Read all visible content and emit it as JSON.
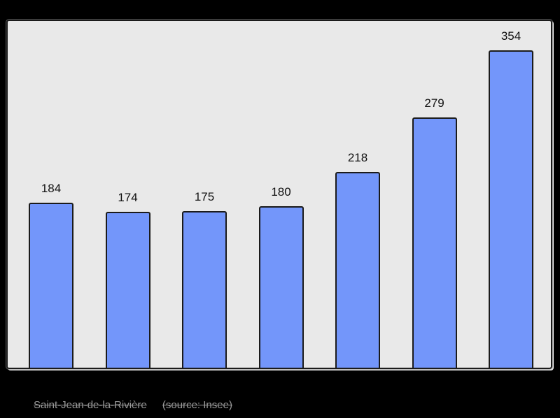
{
  "page": {
    "background": "#000000"
  },
  "chart_data": {
    "type": "bar",
    "values": [
      184,
      174,
      175,
      180,
      218,
      279,
      354
    ],
    "categories": [
      "",
      "",
      "",
      "",
      "",
      "",
      ""
    ],
    "title": "",
    "xlabel": "",
    "ylabel": "",
    "ylim": [
      0,
      354
    ],
    "grid": false,
    "legend_position": "none",
    "data_labels_shown": true,
    "bar_color": "#7396fa",
    "bar_border_color": "#1b1b1b",
    "plot_background": "#e9e9e9",
    "value_label_color": "#111111"
  },
  "caption": {
    "commune": "Saint-Jean-de-la-Rivière",
    "source": "(source: Insee)",
    "color": "#999999",
    "strikethrough": true
  }
}
